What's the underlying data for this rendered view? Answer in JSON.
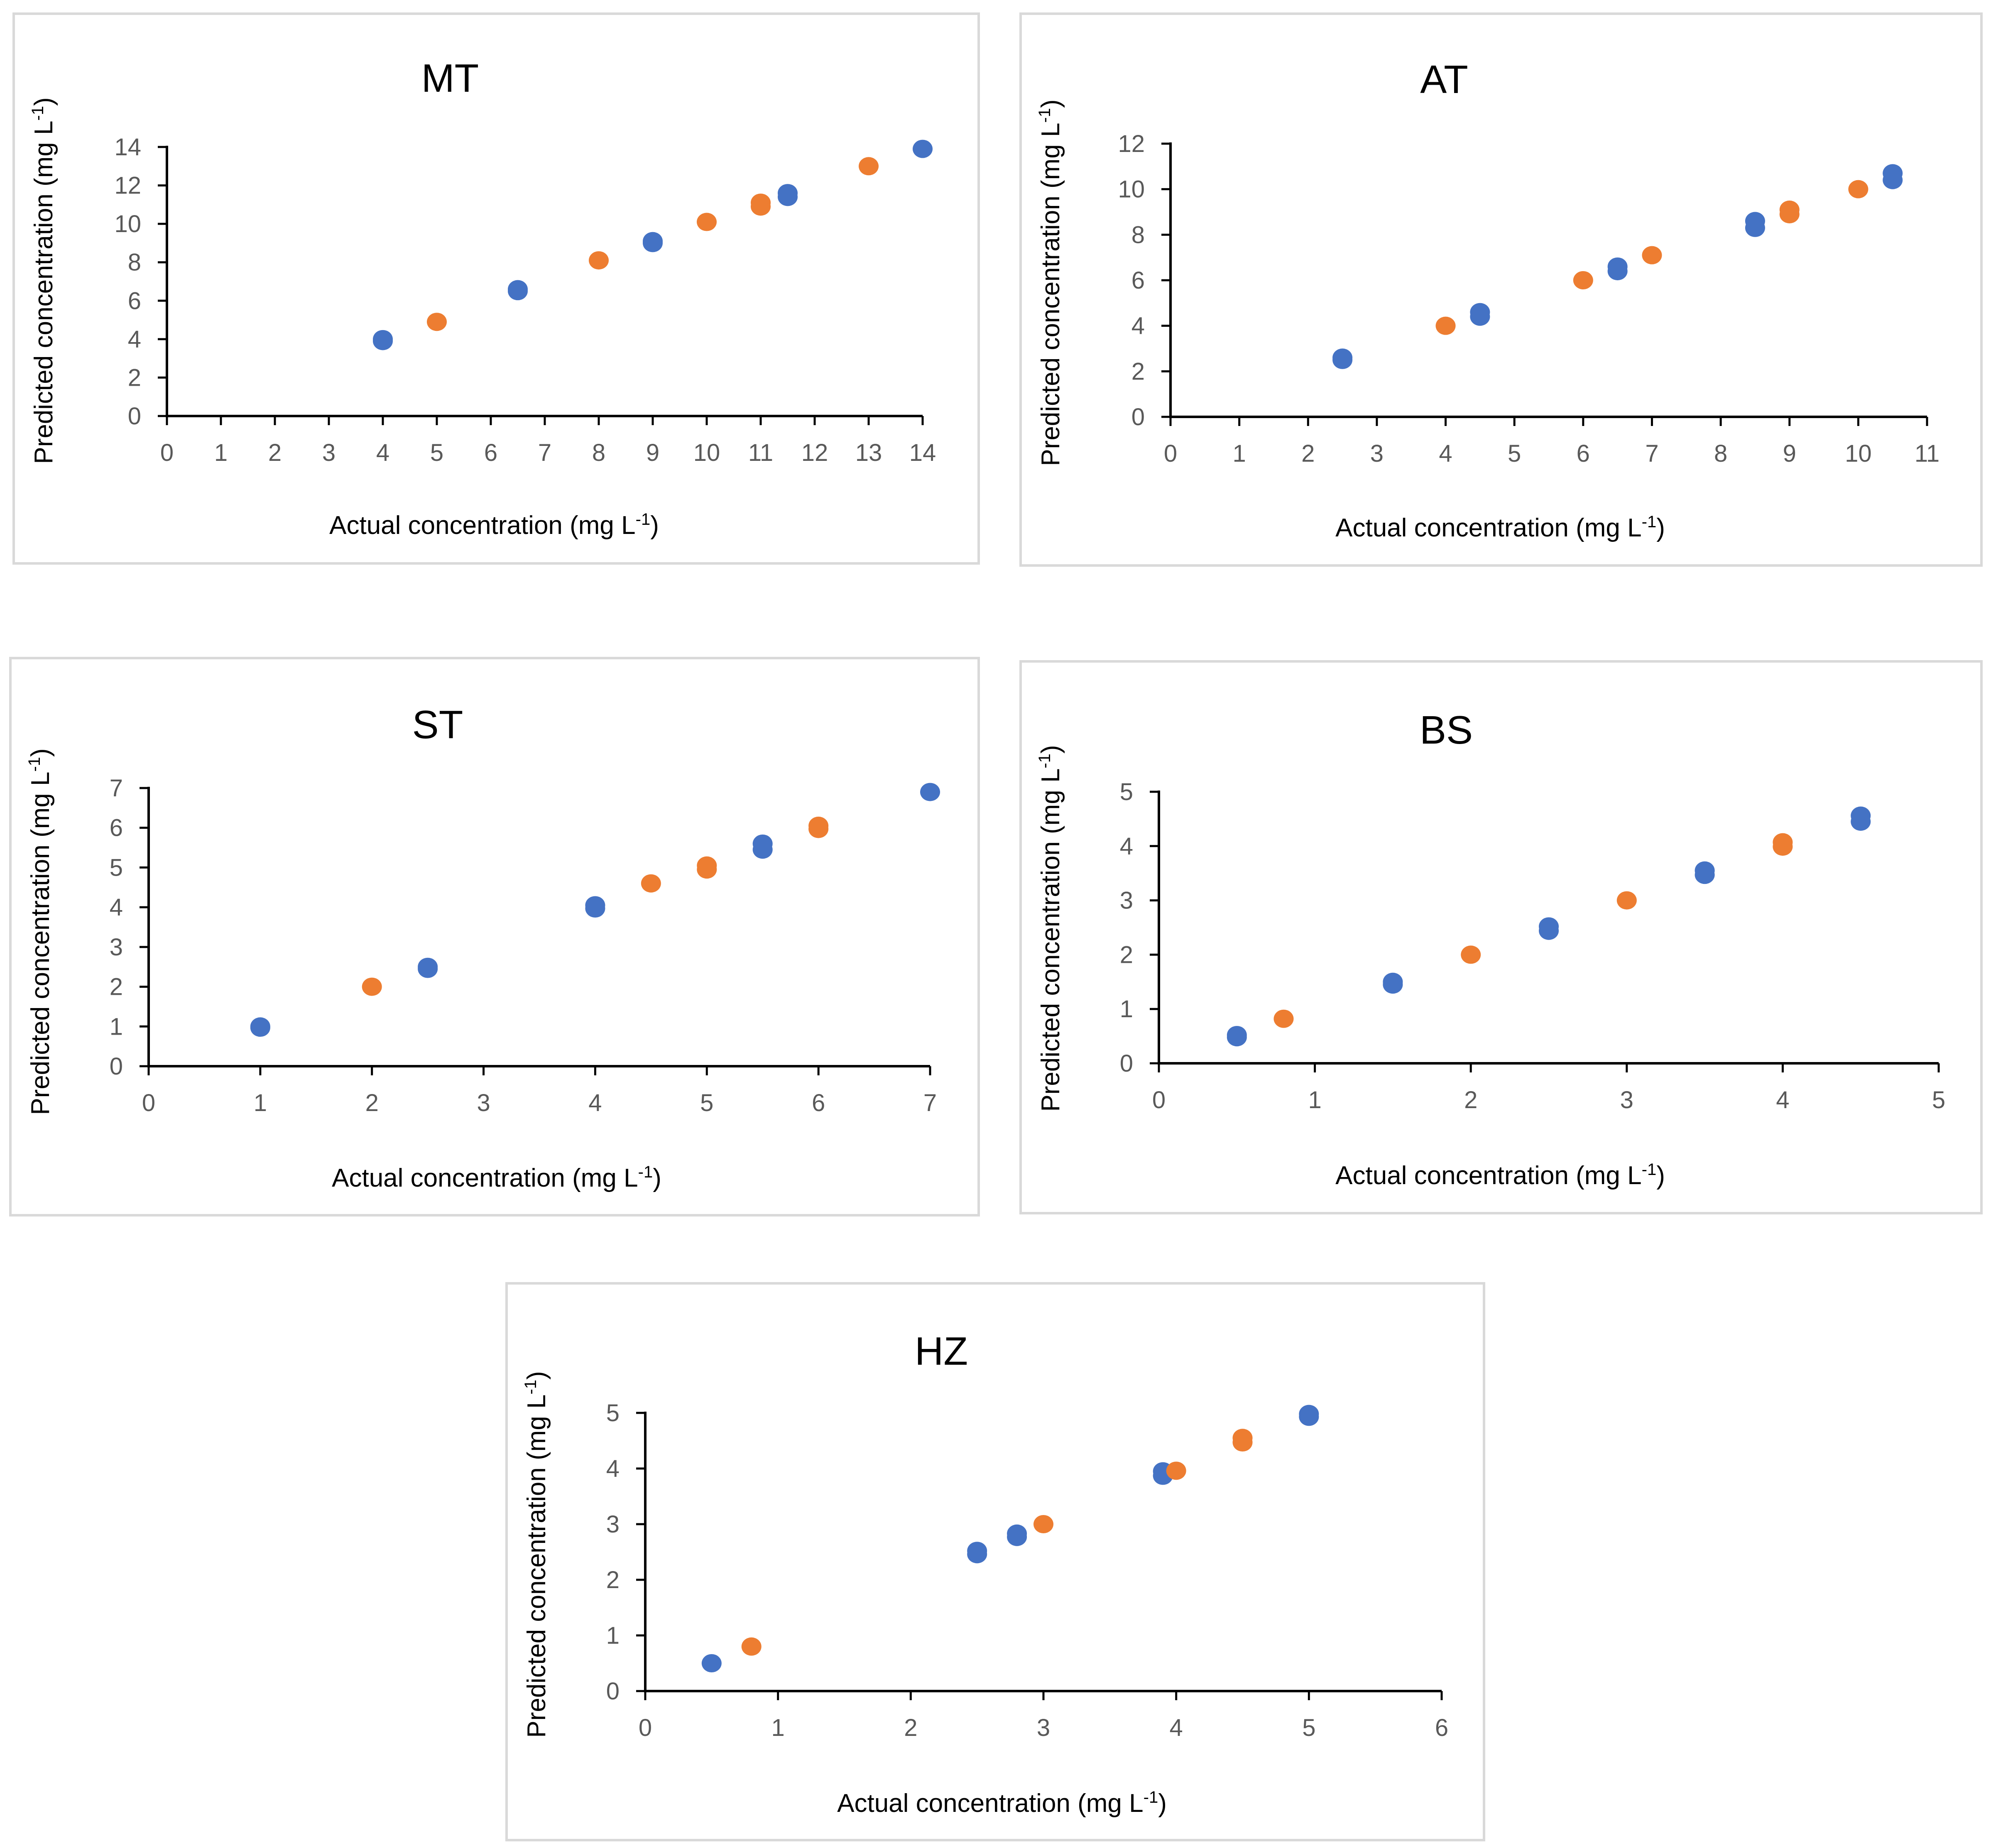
{
  "colors": {
    "series_a": "#4472C4",
    "series_b": "#ED7D31",
    "axis": "#000000",
    "tick_text": "#595959",
    "border": "#d9d9d9"
  },
  "chart_data": [
    {
      "id": "mt",
      "type": "scatter",
      "title": "MT",
      "xlabel": "Actual concentration (mg L",
      "ylabel": "Predicted concentration (mg L",
      "unit_sup": "-1",
      "xlim": [
        0,
        14
      ],
      "ylim": [
        0,
        14
      ],
      "xticks": [
        "0",
        "1",
        "2",
        "3",
        "4",
        "5",
        "6",
        "7",
        "8",
        "9",
        "10",
        "11",
        "12",
        "13",
        "14"
      ],
      "yticks": [
        "0",
        "2",
        "4",
        "6",
        "8",
        "10",
        "12",
        "14"
      ],
      "series": [
        {
          "name": "blue",
          "points": [
            [
              4,
              4.0
            ],
            [
              4,
              3.9
            ],
            [
              6.5,
              6.6
            ],
            [
              6.5,
              6.5
            ],
            [
              9,
              9.1
            ],
            [
              9,
              9.0
            ],
            [
              11.5,
              11.6
            ],
            [
              11.5,
              11.4
            ],
            [
              14,
              13.9
            ]
          ]
        },
        {
          "name": "orange",
          "points": [
            [
              5,
              4.9
            ],
            [
              8,
              8.1
            ],
            [
              10,
              10.1
            ],
            [
              11,
              11.1
            ],
            [
              11,
              10.9
            ],
            [
              13,
              13.0
            ]
          ]
        }
      ]
    },
    {
      "id": "at",
      "type": "scatter",
      "title": "AT",
      "xlabel": "Actual concentration (mg L",
      "ylabel": "Predicted concentration (mg L",
      "unit_sup": "-1",
      "xlim": [
        0,
        11
      ],
      "ylim": [
        0,
        12
      ],
      "xticks": [
        "0",
        "1",
        "2",
        "3",
        "4",
        "5",
        "6",
        "7",
        "8",
        "9",
        "10",
        "11"
      ],
      "yticks": [
        "0",
        "2",
        "4",
        "6",
        "8",
        "10",
        "12"
      ],
      "series": [
        {
          "name": "blue",
          "points": [
            [
              2.5,
              2.6
            ],
            [
              2.5,
              2.5
            ],
            [
              4.5,
              4.6
            ],
            [
              4.5,
              4.4
            ],
            [
              6.5,
              6.6
            ],
            [
              6.5,
              6.4
            ],
            [
              8.5,
              8.6
            ],
            [
              8.5,
              8.3
            ],
            [
              10.5,
              10.7
            ],
            [
              10.5,
              10.4
            ]
          ]
        },
        {
          "name": "orange",
          "points": [
            [
              4,
              4.0
            ],
            [
              6,
              6.0
            ],
            [
              7,
              7.1
            ],
            [
              9,
              9.1
            ],
            [
              9,
              8.9
            ],
            [
              10,
              10.0
            ]
          ]
        }
      ]
    },
    {
      "id": "st",
      "type": "scatter",
      "title": "ST",
      "xlabel": "Actual concentration (mg L",
      "ylabel": "Predicted concentration (mg L",
      "unit_sup": "-1",
      "xlim": [
        0,
        7
      ],
      "ylim": [
        0,
        7
      ],
      "xticks": [
        "0",
        "1",
        "2",
        "3",
        "4",
        "5",
        "6",
        "7"
      ],
      "yticks": [
        "0",
        "1",
        "2",
        "3",
        "4",
        "5",
        "6",
        "7"
      ],
      "series": [
        {
          "name": "blue",
          "points": [
            [
              1,
              1.0
            ],
            [
              1,
              0.97
            ],
            [
              2.5,
              2.5
            ],
            [
              2.5,
              2.45
            ],
            [
              4,
              4.05
            ],
            [
              4,
              3.97
            ],
            [
              5.5,
              5.6
            ],
            [
              5.5,
              5.45
            ],
            [
              7,
              6.9
            ]
          ]
        },
        {
          "name": "orange",
          "points": [
            [
              2,
              2.0
            ],
            [
              4.5,
              4.6
            ],
            [
              5,
              5.05
            ],
            [
              5,
              4.95
            ],
            [
              6,
              6.05
            ],
            [
              6,
              5.97
            ]
          ]
        }
      ]
    },
    {
      "id": "bs",
      "type": "scatter",
      "title": "BS",
      "xlabel": "Actual concentration (mg L",
      "ylabel": "Predicted concentration (mg L",
      "unit_sup": "-1",
      "xlim": [
        0,
        5
      ],
      "ylim": [
        0,
        5
      ],
      "xticks": [
        "0",
        "1",
        "2",
        "3",
        "4",
        "5"
      ],
      "yticks": [
        "0",
        "1",
        "2",
        "3",
        "4",
        "5"
      ],
      "series": [
        {
          "name": "blue",
          "points": [
            [
              0.5,
              0.52
            ],
            [
              0.5,
              0.48
            ],
            [
              1.5,
              1.5
            ],
            [
              1.5,
              1.45
            ],
            [
              2.5,
              2.52
            ],
            [
              2.5,
              2.44
            ],
            [
              3.5,
              3.55
            ],
            [
              3.5,
              3.47
            ],
            [
              4.5,
              4.56
            ],
            [
              4.5,
              4.45
            ]
          ]
        },
        {
          "name": "orange",
          "points": [
            [
              0.8,
              0.82
            ],
            [
              2,
              2.0
            ],
            [
              3,
              3.0
            ],
            [
              4,
              4.07
            ],
            [
              4,
              3.99
            ]
          ]
        }
      ]
    },
    {
      "id": "hz",
      "type": "scatter",
      "title": "HZ",
      "xlabel": "Actual concentration (mg L",
      "ylabel": "Predicted concentration (mg L",
      "unit_sup": "-1",
      "xlim": [
        0,
        6
      ],
      "ylim": [
        0,
        5
      ],
      "xticks": [
        "0",
        "1",
        "2",
        "3",
        "4",
        "5",
        "6"
      ],
      "yticks": [
        "0",
        "1",
        "2",
        "3",
        "4",
        "5"
      ],
      "series": [
        {
          "name": "blue",
          "points": [
            [
              0.5,
              0.5
            ],
            [
              2.5,
              2.52
            ],
            [
              2.5,
              2.46
            ],
            [
              2.8,
              2.83
            ],
            [
              2.8,
              2.77
            ],
            [
              3.9,
              3.95
            ],
            [
              3.9,
              3.87
            ],
            [
              5,
              4.98
            ],
            [
              5,
              4.93
            ]
          ]
        },
        {
          "name": "orange",
          "points": [
            [
              0.8,
              0.8
            ],
            [
              3,
              3.0
            ],
            [
              4,
              3.96
            ],
            [
              4.5,
              4.55
            ],
            [
              4.5,
              4.47
            ]
          ]
        }
      ]
    }
  ]
}
